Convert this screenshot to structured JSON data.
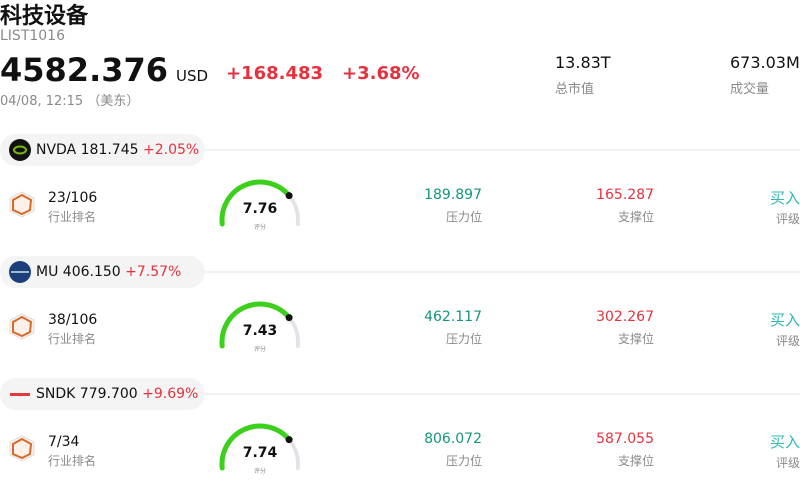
{
  "header": {
    "title": "科技设备",
    "code": "LIST1016",
    "price": "4582.376",
    "currency": "USD",
    "change": "+168.483",
    "change_pct": "+3.68%",
    "market_cap": "13.83T",
    "market_cap_label": "总市值",
    "volume": "673.03M",
    "volume_label": "成交量",
    "time": "04/08, 12:15",
    "timezone": "（美东）"
  },
  "stocks": [
    {
      "ticker": "NVDA",
      "price": "181.745",
      "change_pct": "+2.05%",
      "rank": "23/106",
      "rank_label": "行业排名",
      "score": "7.76",
      "score_label": "评分",
      "resistance": "189.897",
      "resistance_label": "压力位",
      "support": "165.287",
      "support_label": "支撑位",
      "rating": "买入",
      "rating_label": "评级"
    },
    {
      "ticker": "MU",
      "price": "406.150",
      "change_pct": "+7.57%",
      "rank": "38/106",
      "rank_label": "行业排名",
      "score": "7.43",
      "score_label": "评分",
      "resistance": "462.117",
      "resistance_label": "压力位",
      "support": "302.267",
      "support_label": "支撑位",
      "rating": "买入",
      "rating_label": "评级"
    },
    {
      "ticker": "SNDK",
      "price": "779.700",
      "change_pct": "+9.69%",
      "rank": "7/34",
      "rank_label": "行业排名",
      "score": "7.74",
      "score_label": "评分",
      "resistance": "806.072",
      "resistance_label": "压力位",
      "support": "587.055",
      "support_label": "支撑位",
      "rating": "买入",
      "rating_label": "评级"
    }
  ]
}
